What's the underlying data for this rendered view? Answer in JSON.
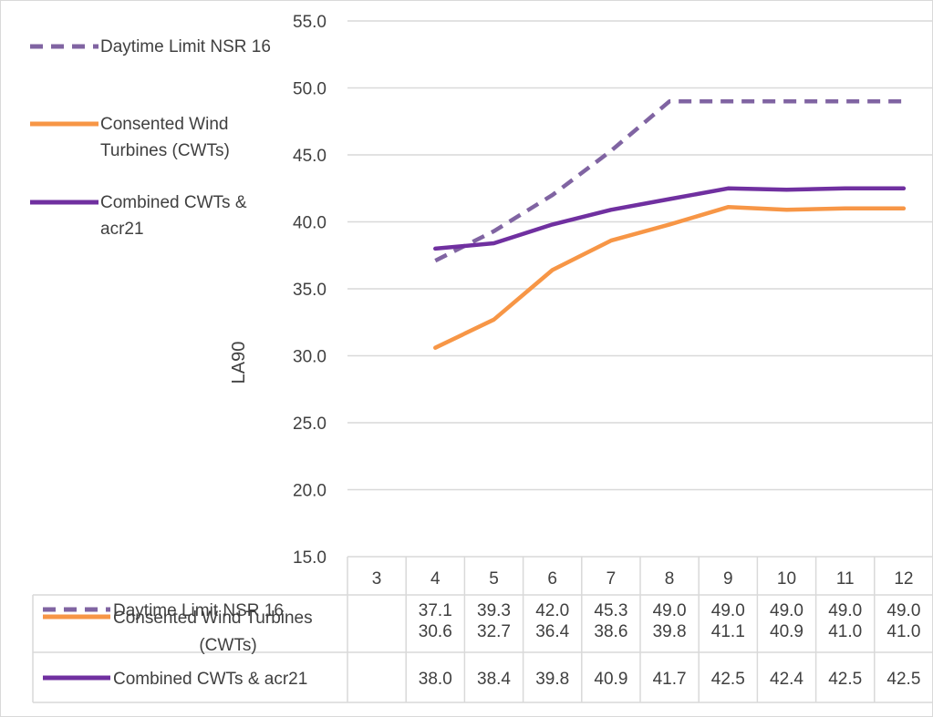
{
  "chart_data": {
    "type": "line",
    "ylabel": "LA90",
    "ylim": [
      15,
      55
    ],
    "yticks": [
      "15.0",
      "20.0",
      "25.0",
      "30.0",
      "35.0",
      "40.0",
      "45.0",
      "50.0",
      "55.0"
    ],
    "categories": [
      "3",
      "4",
      "5",
      "6",
      "7",
      "8",
      "9",
      "10",
      "11",
      "12"
    ],
    "grid": true,
    "legend_position": "left",
    "data_table": true,
    "series": [
      {
        "name": "Daytime Limit NSR 16",
        "legend_lines": [
          "Daytime Limit NSR 16"
        ],
        "table_lines": [
          "Daytime Limit NSR 16"
        ],
        "color": "#8064a2",
        "dashed": true,
        "values": [
          null,
          37.1,
          39.3,
          42.0,
          45.3,
          49.0,
          49.0,
          49.0,
          49.0,
          49.0
        ],
        "labels": [
          "",
          "37.1",
          "39.3",
          "42.0",
          "45.3",
          "49.0",
          "49.0",
          "49.0",
          "49.0",
          "49.0"
        ]
      },
      {
        "name": "Consented Wind Turbines (CWTs)",
        "legend_lines": [
          "Consented Wind",
          "Turbines (CWTs)"
        ],
        "table_lines": [
          "Consented Wind Turbines",
          "(CWTs)"
        ],
        "color": "#f79646",
        "dashed": false,
        "values": [
          null,
          30.6,
          32.7,
          36.4,
          38.6,
          39.8,
          41.1,
          40.9,
          41.0,
          41.0
        ],
        "labels": [
          "",
          "30.6",
          "32.7",
          "36.4",
          "38.6",
          "39.8",
          "41.1",
          "40.9",
          "41.0",
          "41.0"
        ]
      },
      {
        "name": "Combined CWTs & acr21",
        "legend_lines": [
          "Combined CWTs &",
          "acr21"
        ],
        "table_lines": [
          "Combined CWTs & acr21"
        ],
        "color": "#7030a0",
        "dashed": false,
        "values": [
          null,
          38.0,
          38.4,
          39.8,
          40.9,
          41.7,
          42.5,
          42.4,
          42.5,
          42.5
        ],
        "labels": [
          "",
          "38.0",
          "38.4",
          "39.8",
          "40.9",
          "41.7",
          "42.5",
          "42.4",
          "42.5",
          "42.5"
        ]
      }
    ]
  }
}
